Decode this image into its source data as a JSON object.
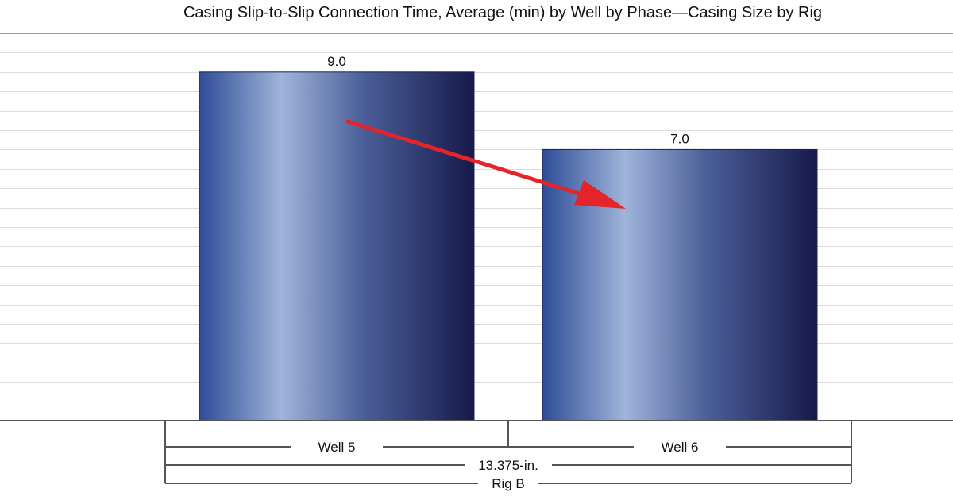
{
  "chart_data": {
    "type": "bar",
    "title": "Casing Slip-to-Slip Connection Time, Average (min) by Well by Phase—Casing Size by Rig",
    "categories": [
      "Well  5",
      "Well 6"
    ],
    "values": [
      9.0,
      7.0
    ],
    "value_labels": [
      "9.0",
      "7.0"
    ],
    "group_labels": {
      "casing_size": "13.375-in.",
      "rig": "Rig B"
    },
    "xlabel": "",
    "ylabel": "",
    "ylim": [
      0,
      10
    ],
    "grid": true,
    "legend": "none",
    "annotation": "arrow-decrease",
    "colors": {
      "bar_dark": "#161a4a",
      "bar_mid": "#2f4c97",
      "bar_light": "#9fb4da",
      "grid": "#dcdcdc",
      "axis": "#555555",
      "header_rule": "#9a9aa8",
      "arrow": "#e5242a"
    }
  }
}
